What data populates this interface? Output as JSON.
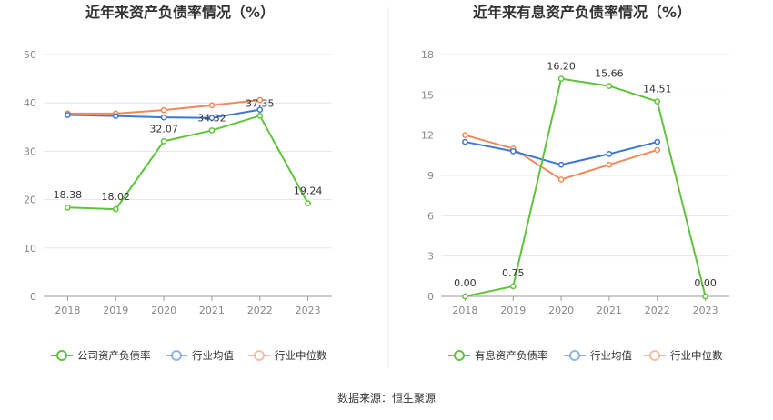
{
  "source_text": "数据来源：恒生聚源",
  "chart_data": [
    {
      "type": "line",
      "title": "近年来资产负债率情况（%）",
      "categories": [
        "2018",
        "2019",
        "2020",
        "2021",
        "2022",
        "2023"
      ],
      "ylim": [
        0,
        50
      ],
      "yticks": [
        0,
        10,
        20,
        30,
        40,
        50
      ],
      "ytick_labels": [
        "0",
        "10",
        "20",
        "30",
        "40",
        "50"
      ],
      "grid": true,
      "legend_position": "bottom",
      "series": [
        {
          "name": "公司资产负债率",
          "color": "#5ec43c",
          "values": [
            18.38,
            18.02,
            32.07,
            34.32,
            37.35,
            19.24
          ],
          "labels": [
            "18.38",
            "18.02",
            "32.07",
            "34.32",
            "37.35",
            "19.24"
          ]
        },
        {
          "name": "行业均值",
          "color": "#3d78d6",
          "values": [
            37.5,
            37.3,
            37.0,
            36.9,
            38.6,
            null
          ]
        },
        {
          "name": "行业中位数",
          "color": "#f0895a",
          "values": [
            37.8,
            37.8,
            38.5,
            39.5,
            40.6,
            null
          ]
        }
      ]
    },
    {
      "type": "line",
      "title": "近年来有息资产负债率情况（%）",
      "categories": [
        "2018",
        "2019",
        "2020",
        "2021",
        "2022",
        "2023"
      ],
      "ylim": [
        0,
        18
      ],
      "yticks": [
        0,
        3,
        6,
        9,
        12,
        15,
        18
      ],
      "ytick_labels": [
        "0",
        "3",
        "6",
        "9",
        "12",
        "15",
        "18"
      ],
      "grid": true,
      "legend_position": "bottom",
      "series": [
        {
          "name": "有息资产负债率",
          "color": "#5ec43c",
          "values": [
            0.0,
            0.75,
            16.2,
            15.66,
            14.51,
            0.0
          ],
          "labels": [
            "0.00",
            "0.75",
            "16.20",
            "15.66",
            "14.51",
            "0.00"
          ]
        },
        {
          "name": "行业均值",
          "color": "#3d78d6",
          "values": [
            11.5,
            10.8,
            9.8,
            10.6,
            11.5,
            null
          ]
        },
        {
          "name": "行业中位数",
          "color": "#f0895a",
          "values": [
            12.0,
            11.0,
            8.7,
            9.8,
            10.9,
            null
          ]
        }
      ]
    }
  ]
}
